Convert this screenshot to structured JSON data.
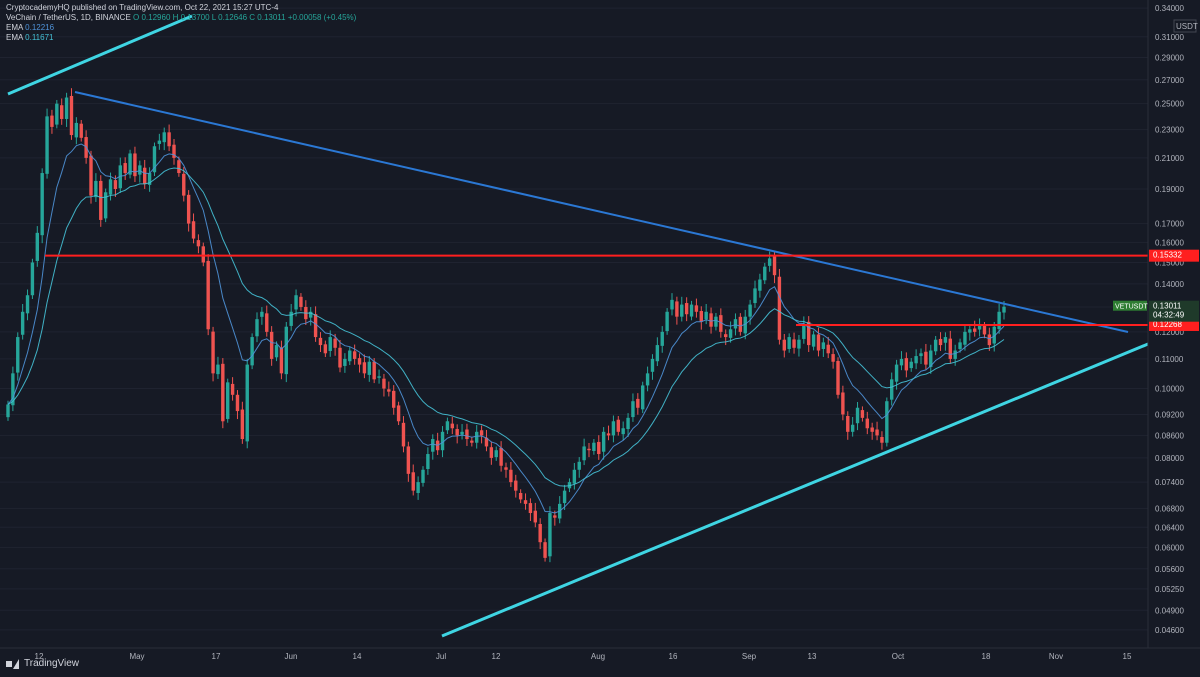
{
  "header": {
    "publisher": "CryptocademyHQ published on TradingView.com, Oct 22, 2021 15:27 UTC-4",
    "symbol": "VeChain / TetherUS, 1D, BINANCE",
    "ohlc": "O 0.12960  H 0.13700  L 0.12646  C 0.13011  +0.00058 (+0.45%)",
    "ema1_label": "EMA",
    "ema1_value": "0.12216",
    "ema2_label": "EMA",
    "ema2_value": "0.11671"
  },
  "footer": {
    "brand": "TradingView"
  },
  "colors": {
    "up": "#26a69a",
    "down": "#ef5350",
    "background": "#161a25",
    "resistance": "#ff1f1f",
    "downtrend": "#2b78d4",
    "uptrend": "#3fd5e3",
    "ema_fast": "#4f93d9",
    "ema_slow": "#45c1d6"
  },
  "chart_data": {
    "type": "candlestick",
    "title": "VeChain / TetherUS, 1D, BINANCE",
    "y_axis": {
      "unit": "USDT",
      "scale": "log",
      "range": [
        0.043,
        0.34
      ],
      "position": "right",
      "ticks": [
        "0.34000",
        "0.31000",
        "0.29000",
        "0.27000",
        "0.25000",
        "0.23000",
        "0.21000",
        "0.19000",
        "0.17000",
        "0.16000",
        "0.15000",
        "0.14000",
        "0.13000",
        "0.12000",
        "0.11000",
        "0.10000",
        "0.09200",
        "0.08600",
        "0.08000",
        "0.07400",
        "0.06800",
        "0.06400",
        "0.06000",
        "0.05600",
        "0.05250",
        "0.04900",
        "0.04600"
      ]
    },
    "x_axis": {
      "ticks": [
        "12",
        "May",
        "17",
        "Jun",
        "14",
        "Jul",
        "12",
        "Aug",
        "16",
        "Sep",
        "13",
        "Oct",
        "18",
        "Nov",
        "15"
      ]
    },
    "price_labels": [
      {
        "text": "VETUSDT",
        "value": "0.13011",
        "countdown": "04:32:49",
        "price": 0.13011
      },
      {
        "text": "0.15332",
        "price": 0.15332
      },
      {
        "text": "0.12268",
        "price": 0.12268
      }
    ],
    "closes": [
      0.095,
      0.105,
      0.118,
      0.128,
      0.135,
      0.15,
      0.165,
      0.2,
      0.24,
      0.232,
      0.25,
      0.238,
      0.255,
      0.226,
      0.235,
      0.224,
      0.21,
      0.186,
      0.195,
      0.172,
      0.188,
      0.196,
      0.19,
      0.205,
      0.2,
      0.213,
      0.198,
      0.205,
      0.193,
      0.2,
      0.218,
      0.222,
      0.228,
      0.218,
      0.21,
      0.2,
      0.186,
      0.17,
      0.162,
      0.158,
      0.15,
      0.121,
      0.105,
      0.108,
      0.09,
      0.102,
      0.098,
      0.093,
      0.085,
      0.108,
      0.118,
      0.125,
      0.128,
      0.12,
      0.11,
      0.115,
      0.105,
      0.122,
      0.128,
      0.135,
      0.13,
      0.125,
      0.128,
      0.118,
      0.115,
      0.112,
      0.118,
      0.114,
      0.107,
      0.11,
      0.113,
      0.11,
      0.108,
      0.105,
      0.109,
      0.103,
      0.104,
      0.1,
      0.099,
      0.094,
      0.09,
      0.083,
      0.076,
      0.072,
      0.074,
      0.077,
      0.081,
      0.085,
      0.082,
      0.087,
      0.09,
      0.088,
      0.086,
      0.087,
      0.085,
      0.084,
      0.087,
      0.086,
      0.083,
      0.08,
      0.082,
      0.078,
      0.077,
      0.074,
      0.072,
      0.07,
      0.069,
      0.067,
      0.065,
      0.061,
      0.058,
      0.067,
      0.066,
      0.069,
      0.072,
      0.074,
      0.077,
      0.079,
      0.083,
      0.082,
      0.084,
      0.081,
      0.087,
      0.086,
      0.09,
      0.087,
      0.088,
      0.091,
      0.096,
      0.094,
      0.101,
      0.105,
      0.11,
      0.115,
      0.12,
      0.128,
      0.133,
      0.126,
      0.131,
      0.127,
      0.131,
      0.128,
      0.124,
      0.128,
      0.122,
      0.126,
      0.12,
      0.118,
      0.121,
      0.125,
      0.12,
      0.126,
      0.131,
      0.138,
      0.142,
      0.148,
      0.152,
      0.144,
      0.117,
      0.113,
      0.118,
      0.114,
      0.117,
      0.123,
      0.115,
      0.119,
      0.113,
      0.116,
      0.112,
      0.109,
      0.098,
      0.092,
      0.087,
      0.089,
      0.094,
      0.091,
      0.088,
      0.087,
      0.086,
      0.084,
      0.096,
      0.103,
      0.108,
      0.11,
      0.106,
      0.109,
      0.111,
      0.112,
      0.108,
      0.113,
      0.117,
      0.115,
      0.118,
      0.11,
      0.113,
      0.116,
      0.12,
      0.121,
      0.12,
      0.123,
      0.119,
      0.115,
      0.122,
      0.128,
      0.1301
    ],
    "ema_fast": {
      "name": "EMA",
      "value": 0.12216
    },
    "ema_slow": {
      "name": "EMA",
      "value": 0.11671
    },
    "horizontal_levels": [
      0.15332,
      0.12268
    ]
  }
}
